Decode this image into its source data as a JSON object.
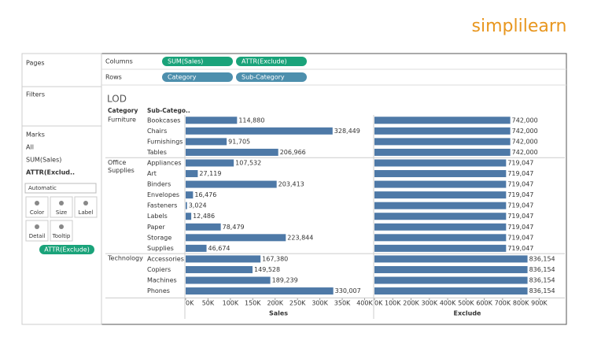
{
  "logo": "simplilearn",
  "sidebar": {
    "pages": "Pages",
    "filters": "Filters",
    "marks": "Marks",
    "mark_cards": [
      "All",
      "SUM(Sales)",
      "ATTR(Exclud.."
    ],
    "mark_type": "Automatic",
    "buttons": [
      "Color",
      "Size",
      "Label",
      "Detail",
      "Tooltip"
    ],
    "detail_pill": "ATTR(Exclude)"
  },
  "shelves": {
    "columns": {
      "label": "Columns",
      "pills": [
        "SUM(Sales)",
        "ATTR(Exclude)"
      ]
    },
    "rows": {
      "label": "Rows",
      "pills": [
        "Category",
        "Sub-Category"
      ]
    }
  },
  "view": {
    "title": "LOD",
    "headers": [
      "Category",
      "Sub-Catego.."
    ],
    "groups": [
      {
        "category": "Furniture",
        "subcategories": [
          "Bookcases",
          "Chairs",
          "Furnishings",
          "Tables"
        ],
        "sales": [
          114880,
          328449,
          91705,
          206966
        ],
        "sales_labels": [
          "114,880",
          "328,449",
          "91,705",
          "206,966"
        ],
        "exclude": [
          742000,
          742000,
          742000,
          742000
        ],
        "exclude_labels": [
          "742,000",
          "742,000",
          "742,000",
          "742,000"
        ]
      },
      {
        "category": "Office Supplies",
        "subcategories": [
          "Appliances",
          "Art",
          "Binders",
          "Envelopes",
          "Fasteners",
          "Labels",
          "Paper",
          "Storage",
          "Supplies"
        ],
        "sales": [
          107532,
          27119,
          203413,
          16476,
          3024,
          12486,
          78479,
          223844,
          46674
        ],
        "sales_labels": [
          "107,532",
          "27,119",
          "203,413",
          "16,476",
          "3,024",
          "12,486",
          "78,479",
          "223,844",
          "46,674"
        ],
        "exclude": [
          719047,
          719047,
          719047,
          719047,
          719047,
          719047,
          719047,
          719047,
          719047
        ],
        "exclude_labels": [
          "719,047",
          "719,047",
          "719,047",
          "719,047",
          "719,047",
          "719,047",
          "719,047",
          "719,047",
          "719,047"
        ]
      },
      {
        "category": "Technology",
        "subcategories": [
          "Accessories",
          "Copiers",
          "Machines",
          "Phones"
        ],
        "sales": [
          167380,
          149528,
          189239,
          330007
        ],
        "sales_labels": [
          "167,380",
          "149,528",
          "189,239",
          "330,007"
        ],
        "exclude": [
          836154,
          836154,
          836154,
          836154
        ],
        "exclude_labels": [
          "836,154",
          "836,154",
          "836,154",
          "836,154"
        ]
      }
    ],
    "sales_axis": {
      "title": "Sales",
      "xlim": [
        0,
        415000
      ],
      "xticks": [
        {
          "value": 0,
          "label": "0K"
        },
        {
          "value": 50000,
          "label": "50K"
        },
        {
          "value": 100000,
          "label": "100K"
        },
        {
          "value": 150000,
          "label": "150K"
        },
        {
          "value": 200000,
          "label": "200K"
        },
        {
          "value": 250000,
          "label": "250K"
        },
        {
          "value": 300000,
          "label": "300K"
        },
        {
          "value": 350000,
          "label": "350K"
        },
        {
          "value": 400000,
          "label": "400K"
        }
      ]
    },
    "exclude_axis": {
      "title": "Exclude",
      "xlim": [
        0,
        1040000
      ],
      "xticks": [
        {
          "value": 0,
          "label": "0K"
        },
        {
          "value": 100000,
          "label": "100K"
        },
        {
          "value": 200000,
          "label": "200K"
        },
        {
          "value": 300000,
          "label": "300K"
        },
        {
          "value": 400000,
          "label": "400K"
        },
        {
          "value": 500000,
          "label": "500K"
        },
        {
          "value": 600000,
          "label": "600K"
        },
        {
          "value": 700000,
          "label": "700K"
        },
        {
          "value": 800000,
          "label": "800K"
        },
        {
          "value": 900000,
          "label": "900K"
        }
      ]
    },
    "bar_color": "#4e79a7"
  }
}
